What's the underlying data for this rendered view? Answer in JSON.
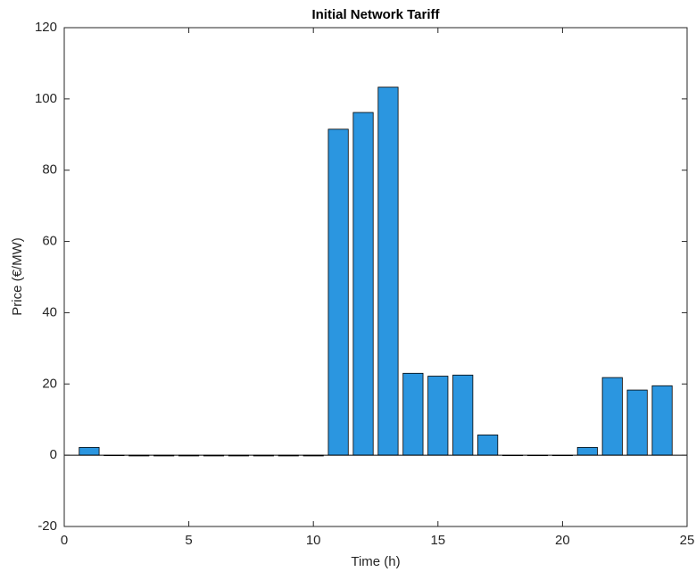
{
  "chart_data": {
    "type": "bar",
    "title": "Initial Network Tariff",
    "x_label": "Time (h)",
    "y_label": "Price (€/MW)",
    "x": [
      1,
      2,
      3,
      4,
      5,
      6,
      7,
      8,
      9,
      10,
      11,
      12,
      13,
      14,
      15,
      16,
      17,
      18,
      19,
      20,
      21,
      22,
      23,
      24
    ],
    "values": [
      2.2,
      0,
      -0.2,
      -0.2,
      -0.2,
      -0.2,
      -0.2,
      -0.2,
      -0.2,
      -0.2,
      91.5,
      96.2,
      103.3,
      23,
      22.2,
      22.5,
      5.7,
      0,
      0,
      0,
      2.2,
      21.8,
      18.3,
      19.5
    ],
    "color": "#2b96e0",
    "xlim": [
      0,
      25
    ],
    "xticks": [
      0,
      5,
      10,
      15,
      20,
      25
    ],
    "ylim": [
      -20,
      120
    ],
    "yticks": [
      -20,
      0,
      20,
      40,
      60,
      80,
      100,
      120
    ],
    "grid": false
  }
}
